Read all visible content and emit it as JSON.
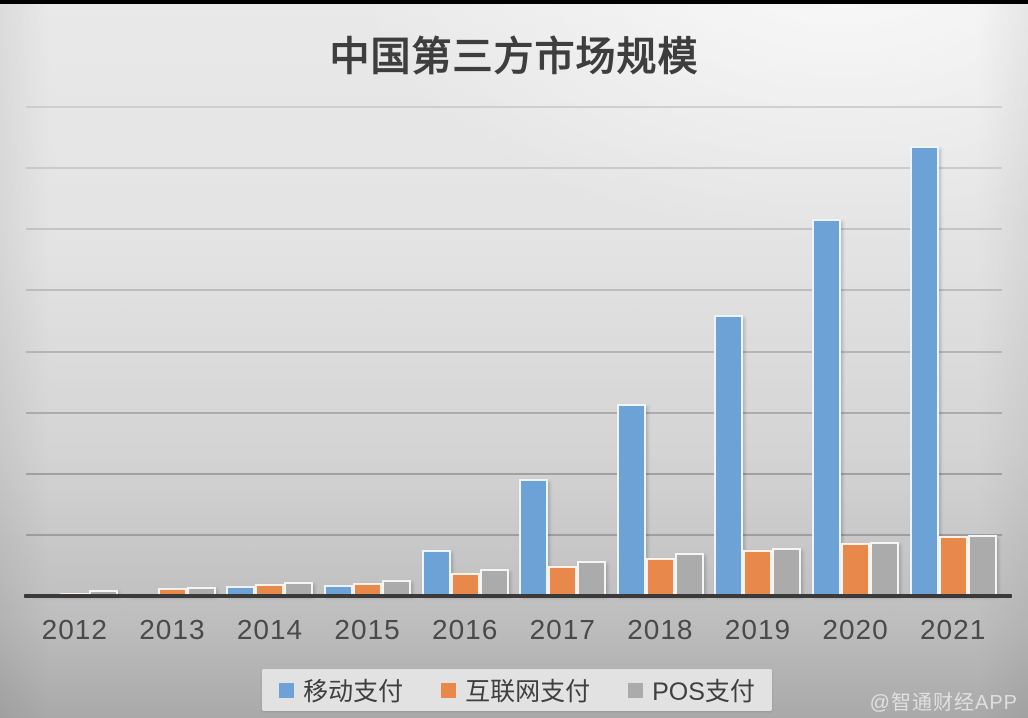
{
  "title": "中国第三方市场规模",
  "watermark": "@智通财经APP",
  "colors": {
    "mobile_blue": "#6CA2D6",
    "internet_orange": "#E8894B",
    "pos_gray": "#ABABAB",
    "axis_line": "#3a3a3a",
    "legend_background": "#e2e2e2"
  },
  "legend": [
    {
      "label": "移动支付",
      "color": "#6CA2D6"
    },
    {
      "label": "互联网支付",
      "color": "#E8894B"
    },
    {
      "label": "POS支付",
      "color": "#ABABAB"
    }
  ],
  "chart_data": {
    "type": "bar",
    "title": "中国第三方市场规模",
    "categories": [
      "2012",
      "2013",
      "2014",
      "2015",
      "2016",
      "2017",
      "2018",
      "2019",
      "2020",
      "2021"
    ],
    "series": [
      {
        "name": "移动支付",
        "color": "#6CA2D6",
        "values": [
          0.02,
          0.03,
          0.16,
          0.18,
          0.75,
          1.91,
          3.14,
          4.6,
          6.17,
          7.36
        ]
      },
      {
        "name": "互联网支付",
        "color": "#E8894B",
        "values": [
          0.05,
          0.13,
          0.2,
          0.21,
          0.38,
          0.49,
          0.62,
          0.75,
          0.87,
          0.98
        ]
      },
      {
        "name": "POS支付",
        "color": "#ABABAB",
        "values": [
          0.1,
          0.15,
          0.23,
          0.26,
          0.44,
          0.57,
          0.7,
          0.79,
          0.88,
          1.0
        ]
      }
    ],
    "xlabel": "",
    "ylabel": "",
    "y_tick_labels": [],
    "ylim": [
      0,
      8
    ],
    "gridline_count": 8,
    "grid": "horizontal",
    "legend_position": "bottom"
  }
}
